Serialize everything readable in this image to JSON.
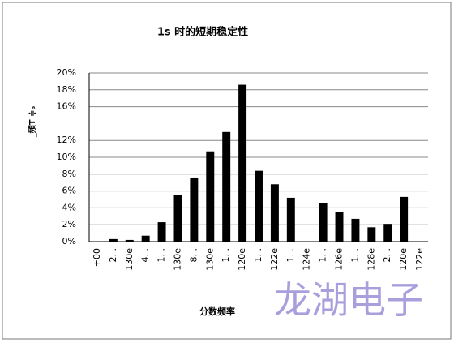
{
  "chart_data": {
    "type": "bar",
    "title": "1s 时的短期稳定性",
    "x_label": "分数频率",
    "y_label": "_頻T  ≑ₚ",
    "watermark": "龙湖电子",
    "categories": [
      "+00",
      "2. .",
      "130e",
      "4. .",
      "1. .",
      "130e",
      "8. .",
      "130e",
      "1. .",
      "120e",
      "1. .",
      "122e",
      "1. .",
      "124e",
      "1. .",
      "126e",
      "1. .",
      "128e",
      "2. .",
      "120e",
      "122e"
    ],
    "values": [
      0,
      0.3,
      0.2,
      0.7,
      2.3,
      5.5,
      7.6,
      10.7,
      13.0,
      18.6,
      8.4,
      6.8,
      5.2,
      0,
      4.6,
      3.5,
      2.7,
      1.7,
      2.1,
      5.3,
      0
    ],
    "color": "#000000",
    "ylim": [
      0,
      20
    ],
    "yticks": [
      {
        "value": 0,
        "label": "0%"
      },
      {
        "value": 2,
        "label": "2%"
      },
      {
        "value": 4,
        "label": "4%"
      },
      {
        "value": 6,
        "label": "6%"
      },
      {
        "value": 8,
        "label": "8%"
      },
      {
        "value": 10,
        "label": "10%"
      },
      {
        "value": 12,
        "label": "12%"
      },
      {
        "value": 16,
        "label": "16%"
      },
      {
        "value": 18,
        "label": "18%"
      },
      {
        "value": 20,
        "label": "20%"
      }
    ],
    "grid": true
  }
}
